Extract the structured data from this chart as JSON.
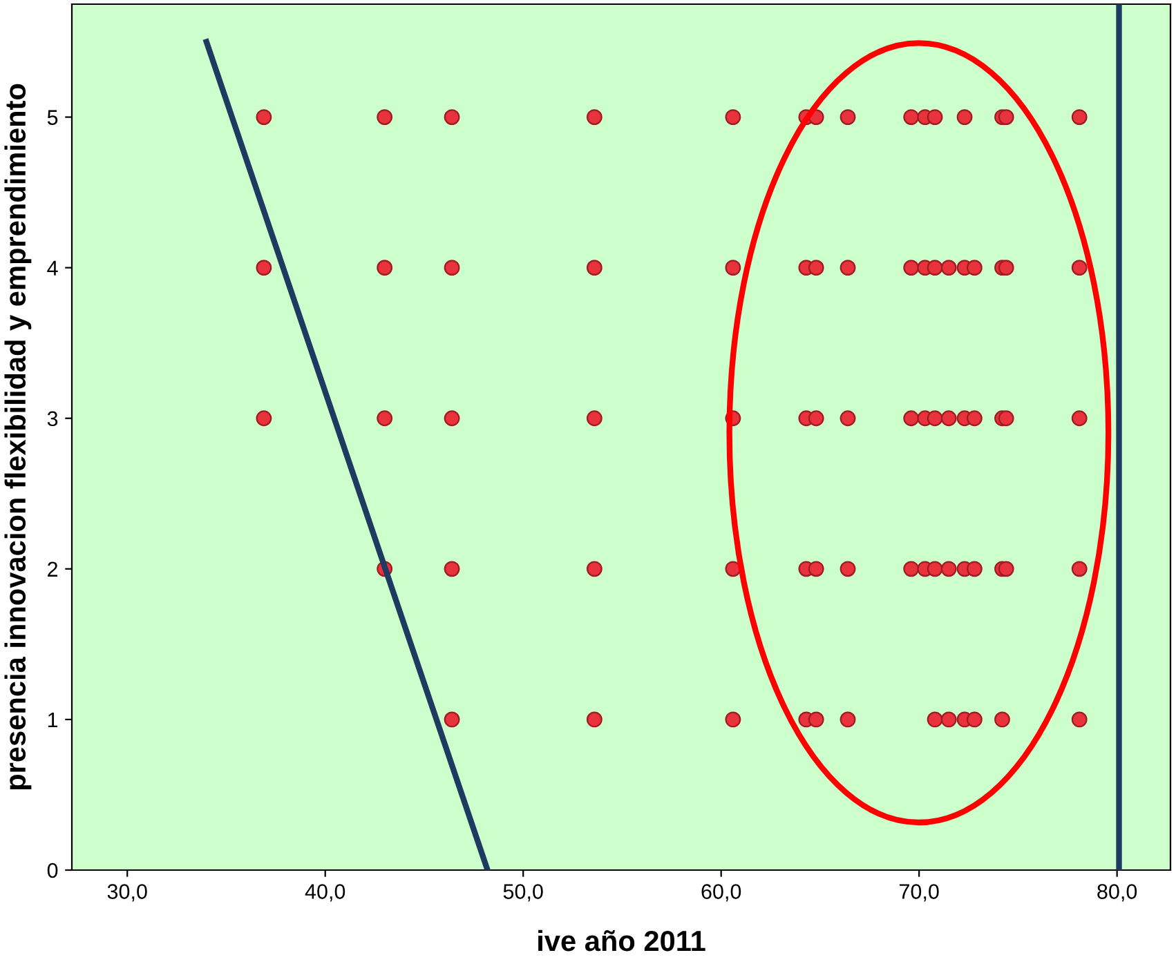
{
  "chart_data": {
    "type": "scatter",
    "xlabel": "ive año 2011",
    "ylabel": "presencia innovacion flexibilidad y emprendimiento",
    "xlim": [
      27.2,
      82.7
    ],
    "ylim": [
      0,
      5.75
    ],
    "xticks": [
      {
        "value": 30,
        "label": "30,0"
      },
      {
        "value": 40,
        "label": "40,0"
      },
      {
        "value": 50,
        "label": "50,0"
      },
      {
        "value": 60,
        "label": "60,0"
      },
      {
        "value": 70,
        "label": "70,0"
      },
      {
        "value": 80,
        "label": "80,0"
      }
    ],
    "yticks": [
      0,
      1,
      2,
      3,
      4,
      5
    ],
    "grid": false,
    "series": [
      {
        "color": "#e8323c",
        "marker": "circle",
        "x": [
          36.9,
          36.9,
          36.9,
          43.0,
          43.0,
          43.0,
          43.0,
          46.4,
          46.4,
          46.4,
          46.4,
          46.4,
          53.6,
          53.6,
          53.6,
          53.6,
          53.6,
          60.6,
          60.6,
          60.6,
          60.6,
          60.6,
          64.3,
          64.3,
          64.3,
          64.3,
          64.3,
          64.8,
          64.8,
          64.8,
          64.8,
          64.8,
          66.4,
          66.4,
          66.4,
          66.4,
          66.4,
          69.6,
          69.6,
          69.6,
          69.6,
          70.3,
          70.3,
          70.3,
          70.3,
          70.8,
          70.8,
          70.8,
          70.8,
          70.8,
          71.5,
          71.5,
          71.5,
          71.5,
          72.3,
          72.3,
          72.3,
          72.3,
          72.3,
          72.8,
          72.8,
          72.8,
          72.8,
          74.2,
          74.2,
          74.2,
          74.2,
          74.2,
          74.4,
          74.4,
          74.4,
          74.4,
          78.1,
          78.1,
          78.1,
          78.1,
          78.1
        ],
        "values": [
          5,
          4,
          3,
          5,
          4,
          3,
          2,
          5,
          4,
          3,
          2,
          1,
          5,
          4,
          3,
          2,
          1,
          5,
          4,
          3,
          2,
          1,
          5,
          4,
          3,
          2,
          1,
          5,
          4,
          3,
          2,
          1,
          5,
          4,
          3,
          2,
          1,
          5,
          4,
          3,
          2,
          5,
          4,
          3,
          2,
          5,
          4,
          3,
          2,
          1,
          4,
          3,
          2,
          1,
          5,
          4,
          3,
          2,
          1,
          4,
          3,
          2,
          1,
          5,
          4,
          3,
          2,
          1,
          5,
          4,
          3,
          2,
          5,
          4,
          3,
          2,
          1
        ]
      },
      {
        "type": "line",
        "color": "#1f3a60",
        "marker": "none",
        "x": [
          34.0,
          48.2
        ],
        "values": [
          5.5,
          0
        ]
      }
    ],
    "ref_lines": [
      {
        "axis": "x",
        "value": 80.1,
        "color": "#1f3a60"
      }
    ]
  }
}
